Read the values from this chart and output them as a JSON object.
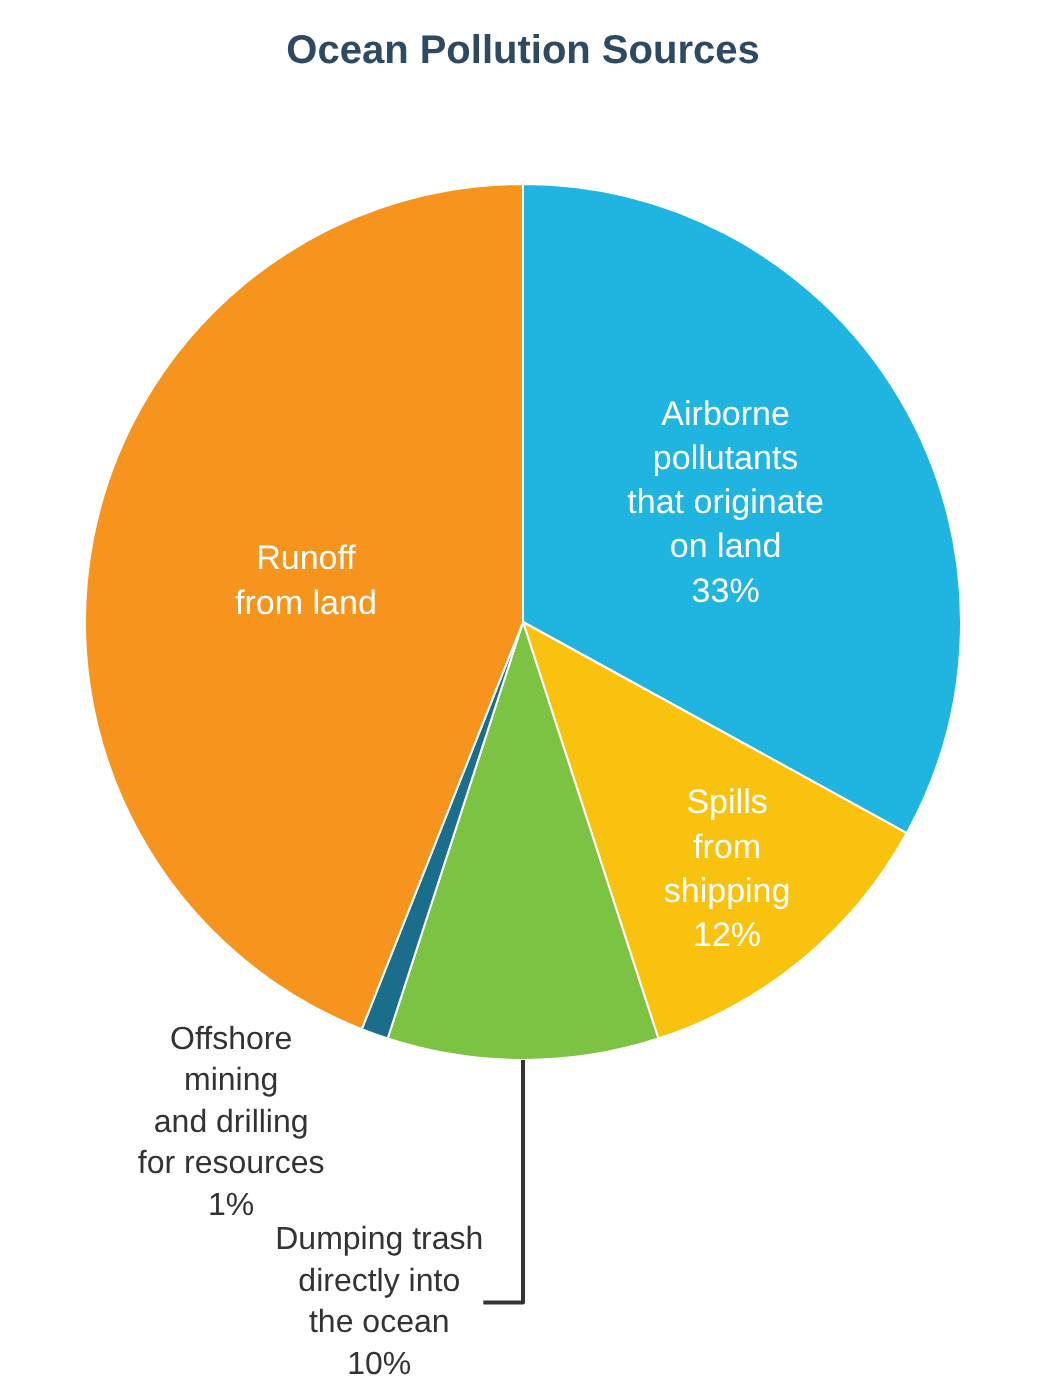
{
  "chart_data": {
    "type": "pie",
    "title": "Ocean Pollution Sources",
    "categories": [
      "Airborne\npollutants\nthat originate\non land",
      "Spills\nfrom\nshipping",
      "Dumping trash\ndirectly into\nthe ocean",
      "Offshore\nmining\nand drilling\nfor resources",
      "Runoff\nfrom land"
    ],
    "values": [
      33,
      12,
      10,
      1,
      44
    ],
    "value_labels": [
      "33%",
      "12%",
      "10%",
      "1%",
      null
    ],
    "colors": [
      "#1fb5e0",
      "#f9c20f",
      "#7cc243",
      "#1a6e8c",
      "#f7941d"
    ],
    "legend": false
  }
}
